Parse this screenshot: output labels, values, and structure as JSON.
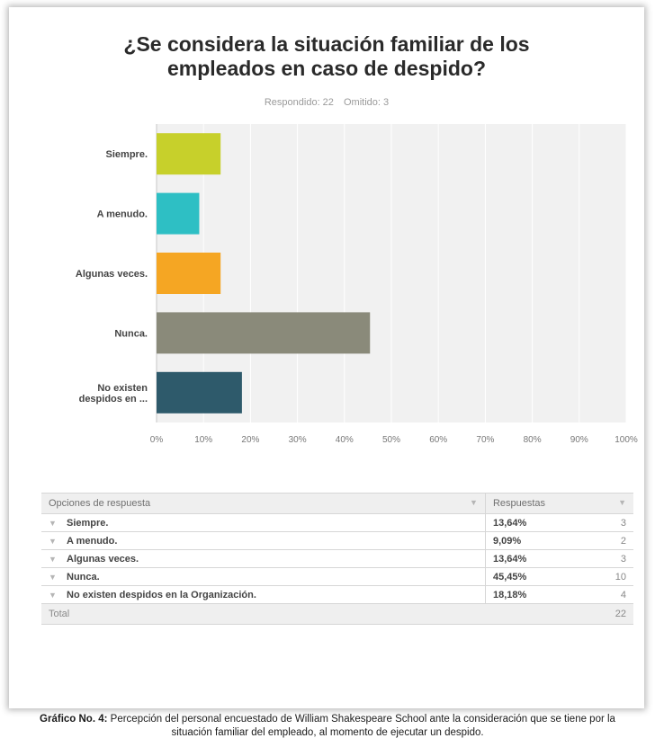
{
  "header": {
    "title_line1": "¿Se considera la situación familiar de los",
    "title_line2": "empleados en caso de despido?",
    "answered": "Respondido: 22",
    "skipped": "Omitido: 3"
  },
  "chart_data": {
    "type": "bar",
    "orientation": "horizontal",
    "categories": [
      "Siempre.",
      "A menudo.",
      "Algunas veces.",
      "Nunca.",
      "No existen despidos en ..."
    ],
    "values": [
      13.64,
      9.09,
      13.64,
      45.45,
      18.18
    ],
    "colors": [
      "#c7d02b",
      "#2ebfc4",
      "#f5a623",
      "#8a8a7a",
      "#2e5a6b"
    ],
    "ticks": [
      "0%",
      "10%",
      "20%",
      "30%",
      "40%",
      "50%",
      "60%",
      "70%",
      "80%",
      "90%",
      "100%"
    ],
    "xlim": [
      0,
      100
    ],
    "grid": true,
    "plot_background": "#f1f1f1"
  },
  "table": {
    "header_option": "Opciones de respuesta",
    "header_responses": "Respuestas",
    "rows": [
      {
        "option": "Siempre.",
        "percent": "13,64%",
        "count": "3"
      },
      {
        "option": "A menudo.",
        "percent": "9,09%",
        "count": "2"
      },
      {
        "option": "Algunas veces.",
        "percent": "13,64%",
        "count": "3"
      },
      {
        "option": "Nunca.",
        "percent": "45,45%",
        "count": "10"
      },
      {
        "option": "No existen despidos en la Organización.",
        "percent": "18,18%",
        "count": "4"
      }
    ],
    "total_label": "Total",
    "total_count": "22"
  },
  "caption": {
    "label": "Gráfico No. 4:",
    "text": "Percepción del personal encuestado de William Shakespeare School ante la consideración que se tiene por la situación familiar del empleado, al momento de ejecutar un despido."
  }
}
